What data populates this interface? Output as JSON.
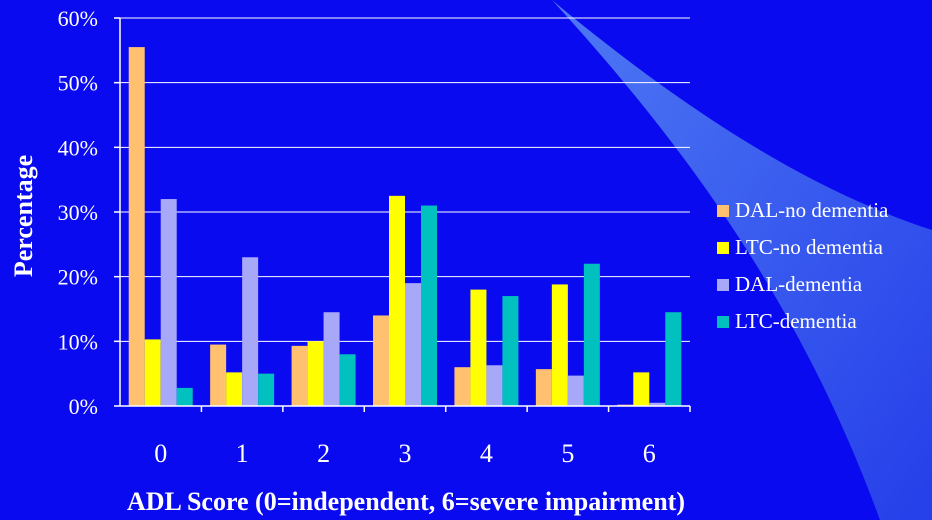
{
  "colors": {
    "background": "#0a0af0",
    "swoosh_light": "#5a8cf5",
    "swoosh_dark": "#2a48e8",
    "gridline": "#ffffff"
  },
  "chart_data": {
    "type": "bar",
    "title": "",
    "xlabel": "ADL Score (0=independent, 6=severe impairment)",
    "ylabel": "Percentage",
    "categories": [
      "0",
      "1",
      "2",
      "3",
      "4",
      "5",
      "6"
    ],
    "ylim": [
      0,
      60
    ],
    "yticks": [
      "0%",
      "10%",
      "20%",
      "30%",
      "40%",
      "50%",
      "60%"
    ],
    "grid": true,
    "legend_position": "right",
    "series": [
      {
        "name": "DAL-no dementia",
        "color": "#ffc070",
        "values": [
          55.5,
          9.5,
          9.3,
          14.0,
          6.0,
          5.7,
          0.2
        ]
      },
      {
        "name": "LTC-no dementia",
        "color": "#ffff00",
        "values": [
          10.3,
          5.2,
          10.0,
          32.5,
          18.0,
          18.8,
          5.2
        ]
      },
      {
        "name": "DAL-dementia",
        "color": "#a8a8f8",
        "values": [
          32.0,
          23.0,
          14.5,
          19.0,
          6.3,
          4.7,
          0.5
        ]
      },
      {
        "name": "LTC-dementia",
        "color": "#00c0c0",
        "values": [
          2.8,
          5.0,
          8.0,
          31.0,
          17.0,
          22.0,
          14.5
        ]
      }
    ]
  }
}
